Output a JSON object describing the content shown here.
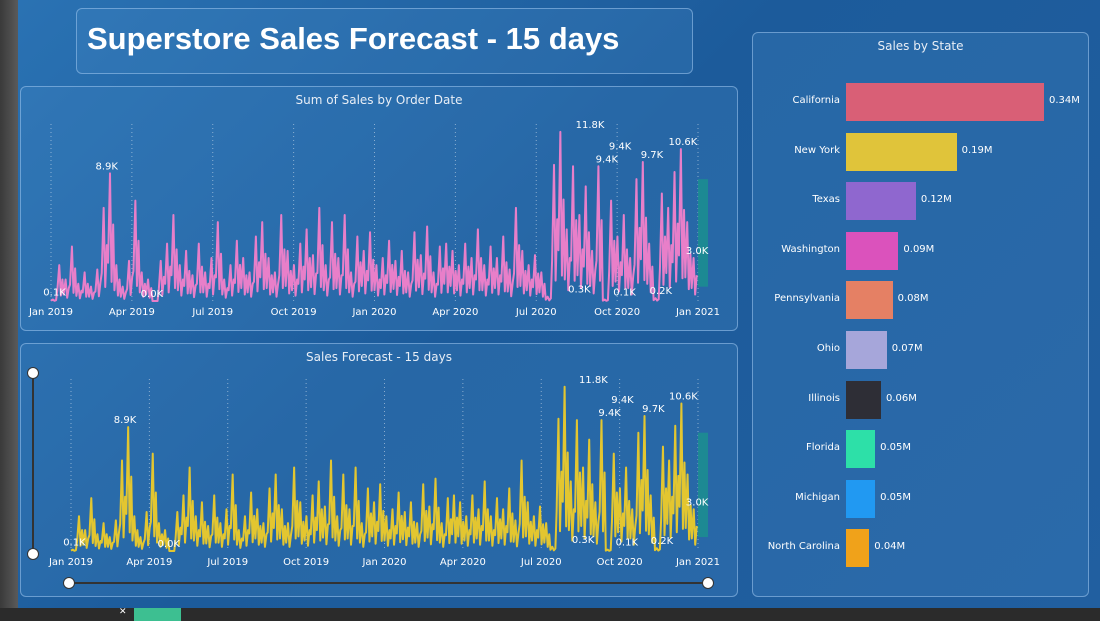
{
  "title": "Superstore Sales Forecast - 15 days",
  "chart_data": [
    {
      "type": "line",
      "title": "Sum of Sales by Order Date",
      "color": "#e87fc9",
      "x_tick_labels": [
        "Jan 2019",
        "Apr 2019",
        "Jul 2019",
        "Oct 2019",
        "Jan 2020",
        "Apr 2020",
        "Jul 2020",
        "Oct 2020",
        "Jan 2021"
      ],
      "series_start": "2019-01-01",
      "series_frequency": "weekly",
      "y_unit": "K",
      "values": [
        0.1,
        2.5,
        1.5,
        3.8,
        1.2,
        2.0,
        1.0,
        2.2,
        6.5,
        8.9,
        2.5,
        1.0,
        2.8,
        7.0,
        2.0,
        1.5,
        0.0,
        2.8,
        4.0,
        6.0,
        2.5,
        3.5,
        1.8,
        4.0,
        2.0,
        3.0,
        5.5,
        1.5,
        2.5,
        4.2,
        3.0,
        2.0,
        4.5,
        5.5,
        3.0,
        2.0,
        6.0,
        3.5,
        2.5,
        4.0,
        5.0,
        3.2,
        6.5,
        2.5,
        5.5,
        3.0,
        6.0,
        2.0,
        4.5,
        3.5,
        4.8,
        2.5,
        3.0,
        4.2,
        2.8,
        3.5,
        2.0,
        4.8,
        3.2,
        5.2,
        2.0,
        3.8,
        4.0,
        3.5,
        2.5,
        4.0,
        3.0,
        5.0,
        2.5,
        3.8,
        3.0,
        4.5,
        2.2,
        6.5,
        3.5,
        2.5,
        3.2,
        2.0,
        0.3,
        9.5,
        11.8,
        5.0,
        9.4,
        6.0,
        8.0,
        3.5,
        9.4,
        0.1,
        7.0,
        4.5,
        6.0,
        3.0,
        8.5,
        9.7,
        4.0,
        0.2,
        7.5,
        6.5,
        9.0,
        10.6,
        5.5,
        3.0
      ],
      "ylim": [
        0,
        12
      ],
      "forecast": {
        "days": 15,
        "color": "#1b8f8f",
        "lower": 1.0,
        "upper": 8.5
      },
      "data_labels": [
        {
          "date": "2019-01-05",
          "value": 0.1,
          "text": "0.1K"
        },
        {
          "date": "2019-03-05",
          "value": 8.9,
          "text": "8.9K"
        },
        {
          "date": "2019-04-25",
          "value": 0.0,
          "text": "0.0K"
        },
        {
          "date": "2020-08-20",
          "value": 0.3,
          "text": "0.3K"
        },
        {
          "date": "2020-09-01",
          "value": 11.8,
          "text": "11.8K"
        },
        {
          "date": "2020-09-20",
          "value": 9.4,
          "text": "9.4K"
        },
        {
          "date": "2020-10-05",
          "value": 9.4,
          "text": "9.4K"
        },
        {
          "date": "2020-10-10",
          "value": 0.1,
          "text": "0.1K"
        },
        {
          "date": "2020-11-10",
          "value": 9.7,
          "text": "9.7K"
        },
        {
          "date": "2020-11-20",
          "value": 0.2,
          "text": "0.2K"
        },
        {
          "date": "2020-12-15",
          "value": 10.6,
          "text": "10.6K"
        },
        {
          "date": "2020-12-31",
          "value": 3.0,
          "text": "3.0K"
        }
      ]
    },
    {
      "type": "line",
      "title": "Sales Forecast - 15 days",
      "color": "#e3c630",
      "same_data_as": "Sum of Sales by Order Date"
    },
    {
      "type": "bar",
      "orientation": "horizontal",
      "title": "Sales by State",
      "unit": "M",
      "categories": [
        "California",
        "New York",
        "Texas",
        "Washington",
        "Pennsylvania",
        "Ohio",
        "Illinois",
        "Florida",
        "Michigan",
        "North Carolina"
      ],
      "values": [
        0.34,
        0.19,
        0.12,
        0.09,
        0.08,
        0.07,
        0.06,
        0.05,
        0.05,
        0.04
      ],
      "value_labels": [
        "0.34M",
        "0.19M",
        "0.12M",
        "0.09M",
        "0.08M",
        "0.07M",
        "0.06M",
        "0.05M",
        "0.05M",
        "0.04M"
      ],
      "colors": [
        "#d95f76",
        "#e0c43a",
        "#8f67cf",
        "#db52bc",
        "#e58064",
        "#a6a6da",
        "#2e2e36",
        "#2de0a8",
        "#2199f2",
        "#f0a21a"
      ]
    }
  ]
}
